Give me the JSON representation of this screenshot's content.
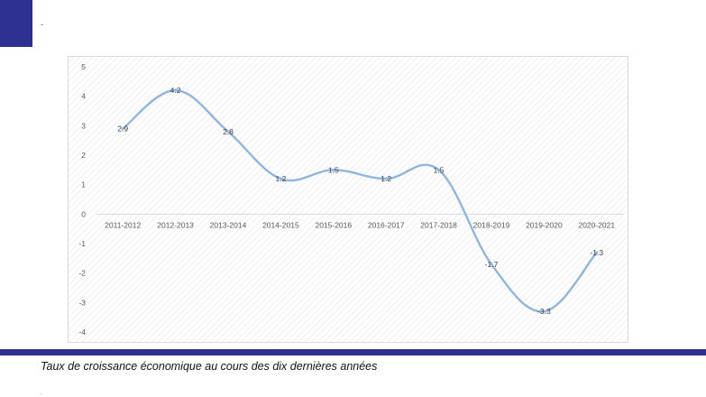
{
  "page": {
    "top_mark": "-",
    "caption": "Taux de croissance économique au cours des dix dernières années",
    "bottom_mark": "."
  },
  "colors": {
    "accent": "#2e3192",
    "line": "#8fb6e0",
    "frame": "#d9d9d9",
    "hatch": "#e8e8e8",
    "text": "#595959"
  },
  "chart_data": {
    "type": "line",
    "title": "",
    "xlabel": "",
    "ylabel": "",
    "categories": [
      "2011-2012",
      "2012-2013",
      "2013-2014",
      "2014-2015",
      "2015-2016",
      "2016-2017",
      "2017-2018",
      "2018-2019",
      "2019-2020",
      "2020-2021"
    ],
    "values": [
      2.9,
      4.2,
      2.8,
      1.2,
      1.5,
      1.2,
      1.5,
      -1.7,
      -3.3,
      -1.3
    ],
    "data_labels": [
      "2.9",
      "4.2",
      "2.8",
      "1.2",
      "1.5",
      "1.2",
      "1.5",
      "-1.7",
      "-3.3",
      "-1.3"
    ],
    "ylim": [
      -4,
      5
    ],
    "y_ticks": [
      "5",
      "4",
      "3",
      "2",
      "1",
      "0",
      "-1",
      "-2",
      "-3",
      "-4"
    ],
    "grid": "diagonal hatch background",
    "legend": "none"
  }
}
